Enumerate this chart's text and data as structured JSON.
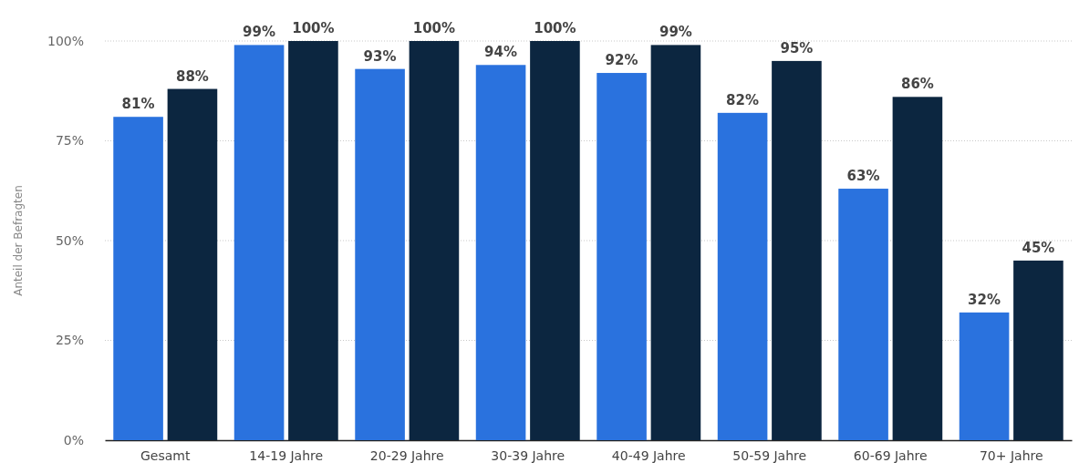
{
  "chart_data": {
    "type": "bar",
    "ylabel": "Anteil der Befragten",
    "categories": [
      "Gesamt",
      "14-19 Jahre",
      "20-29 Jahre",
      "30-39 Jahre",
      "40-49 Jahre",
      "50-59 Jahre",
      "60-69 Jahre",
      "70+ Jahre"
    ],
    "series": [
      {
        "color": "#2a72de",
        "values": [
          81,
          99,
          93,
          94,
          92,
          82,
          63,
          32
        ],
        "value_labels": [
          "81%",
          "99%",
          "93%",
          "94%",
          "92%",
          "82%",
          "63%",
          "32%"
        ]
      },
      {
        "color": "#0c2640",
        "values": [
          88,
          100,
          100,
          100,
          99,
          95,
          86,
          45
        ],
        "value_labels": [
          "88%",
          "100%",
          "100%",
          "100%",
          "99%",
          "95%",
          "86%",
          "45%"
        ]
      }
    ],
    "ylim": [
      0,
      100
    ],
    "yticks": [
      {
        "value": 0,
        "label": "0%"
      },
      {
        "value": 25,
        "label": "25%"
      },
      {
        "value": 50,
        "label": "50%"
      },
      {
        "value": 75,
        "label": "75%"
      },
      {
        "value": 100,
        "label": "100%"
      }
    ],
    "grid": "y"
  }
}
